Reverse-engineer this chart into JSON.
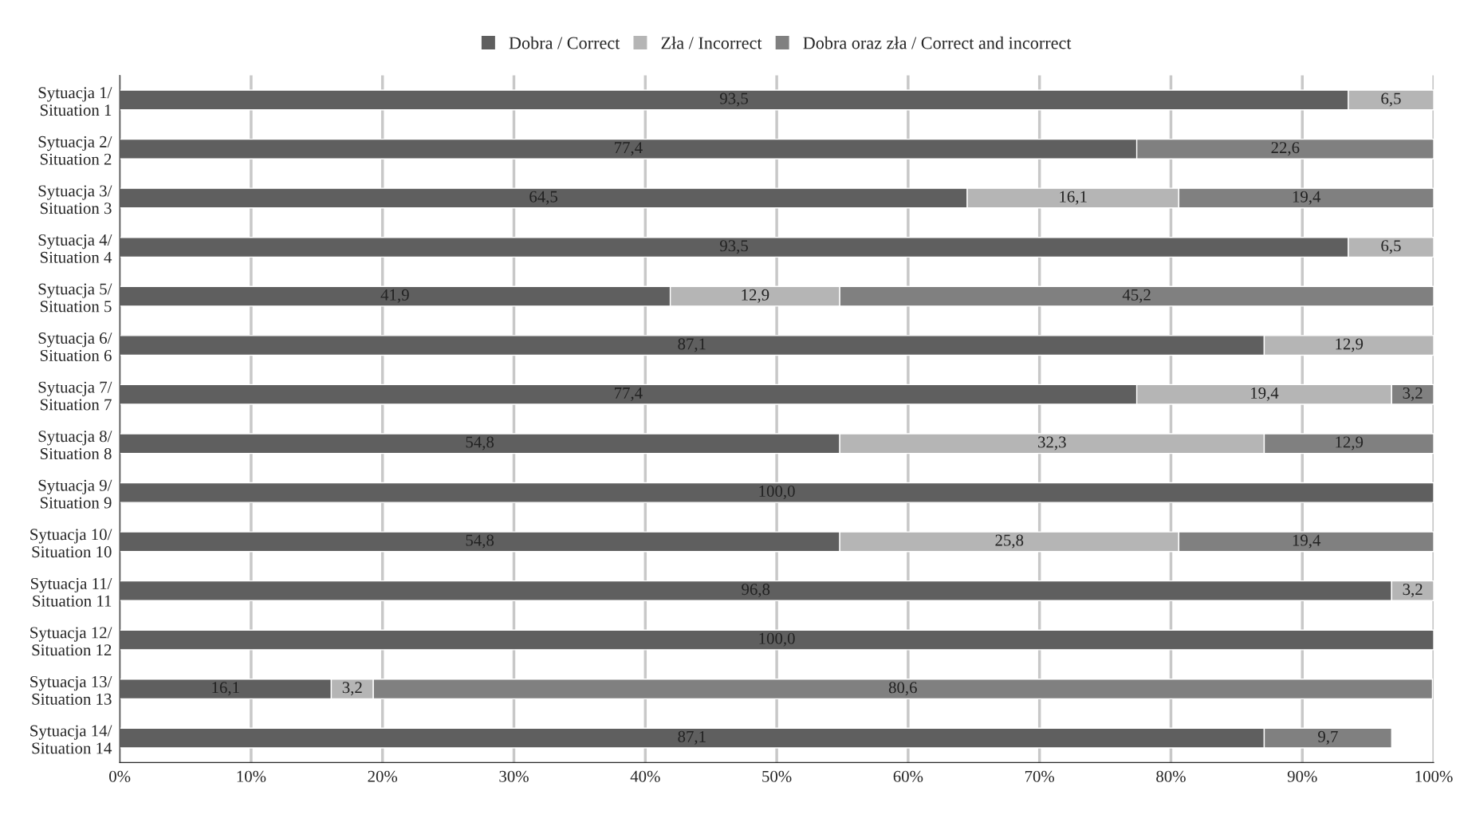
{
  "chart_data": {
    "type": "bar",
    "orientation": "horizontal",
    "stacked": true,
    "categories": [
      "Sytuacja 1/\nSituation 1",
      "Sytuacja 2/\nSituation 2",
      "Sytuacja 3/\nSituation 3",
      "Sytuacja 4/\nSituation 4",
      "Sytuacja 5/\nSituation 5",
      "Sytuacja 6/\nSituation 6",
      "Sytuacja 7/\nSituation 7",
      "Sytuacja 8/\nSituation 8",
      "Sytuacja 9/\nSituation 9",
      "Sytuacja 10/\nSituation 10",
      "Sytuacja 11/\nSituation 11",
      "Sytuacja 12/\nSituation 12",
      "Sytuacja 13/\nSituation 13",
      "Sytuacja 14/\nSituation 14"
    ],
    "series": [
      {
        "name": "Dobra / Correct",
        "color": "#5f5f5f",
        "values": [
          93.5,
          77.4,
          64.5,
          93.5,
          41.9,
          87.1,
          77.4,
          54.8,
          100.0,
          54.8,
          96.8,
          100.0,
          16.1,
          87.1
        ],
        "value_labels": [
          "93,5",
          "77,4",
          "64,5",
          "93,5",
          "41,9",
          "87,1",
          "77,4",
          "54,8",
          "100,0",
          "54,8",
          "96,8",
          "100,0",
          "16,1",
          "87,1"
        ]
      },
      {
        "name": "Zła / Incorrect",
        "color": "#b5b5b5",
        "values": [
          6.5,
          null,
          16.1,
          6.5,
          12.9,
          12.9,
          19.4,
          32.3,
          null,
          25.8,
          3.2,
          null,
          3.2,
          null
        ],
        "value_labels": [
          "6,5",
          null,
          "16,1",
          "6,5",
          "12,9",
          "12,9",
          "19,4",
          "32,3",
          null,
          "25,8",
          "3,2",
          null,
          "3,2",
          null
        ]
      },
      {
        "name": "Dobra oraz zła / Correct and incorrect",
        "color": "#808080",
        "values": [
          null,
          22.6,
          19.4,
          null,
          45.2,
          null,
          3.2,
          12.9,
          null,
          19.4,
          null,
          null,
          80.6,
          9.7
        ],
        "value_labels": [
          null,
          "22,6",
          "19,4",
          null,
          "45,2",
          null,
          "3,2",
          "12,9",
          null,
          "19,4",
          null,
          null,
          "80,6",
          "9,7"
        ]
      }
    ],
    "xlim": [
      0,
      100
    ],
    "xticks": [
      {
        "value": 0,
        "label": "0%"
      },
      {
        "value": 10,
        "label": "10%"
      },
      {
        "value": 20,
        "label": "20%"
      },
      {
        "value": 30,
        "label": "30%"
      },
      {
        "value": 40,
        "label": "40%"
      },
      {
        "value": 50,
        "label": "50%"
      },
      {
        "value": 60,
        "label": "60%"
      },
      {
        "value": 70,
        "label": "70%"
      },
      {
        "value": 80,
        "label": "80%"
      },
      {
        "value": 90,
        "label": "90%"
      },
      {
        "value": 100,
        "label": "100%"
      }
    ],
    "grid": "x",
    "legend": "top"
  }
}
